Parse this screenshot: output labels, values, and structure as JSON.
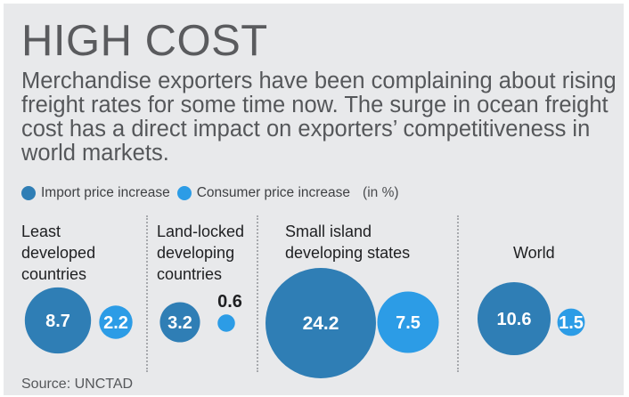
{
  "title": "HIGH COST",
  "subtitle": "Merchandise exporters have been complaining about rising freight rates for some time now. The surge in ocean freight cost has a direct impact on exporters’ competitiveness in world markets.",
  "legend": {
    "import_label": "Import price increase",
    "consumer_label": "Consumer price increase",
    "unit": "(in %)"
  },
  "source": "Source: UNCTAD",
  "colors": {
    "import": "#2f7eb5",
    "consumer": "#2c9ce6",
    "panel": "#e8e9eb"
  },
  "chart_data": {
    "type": "bubble",
    "categories": [
      "Least developed countries",
      "Land-locked developing countries",
      "Small island developing states",
      "World"
    ],
    "series": [
      {
        "name": "Import price increase",
        "values": [
          8.7,
          3.2,
          24.2,
          10.6
        ]
      },
      {
        "name": "Consumer price increase",
        "values": [
          2.2,
          0.6,
          7.5,
          1.5
        ]
      }
    ],
    "unit": "%"
  }
}
